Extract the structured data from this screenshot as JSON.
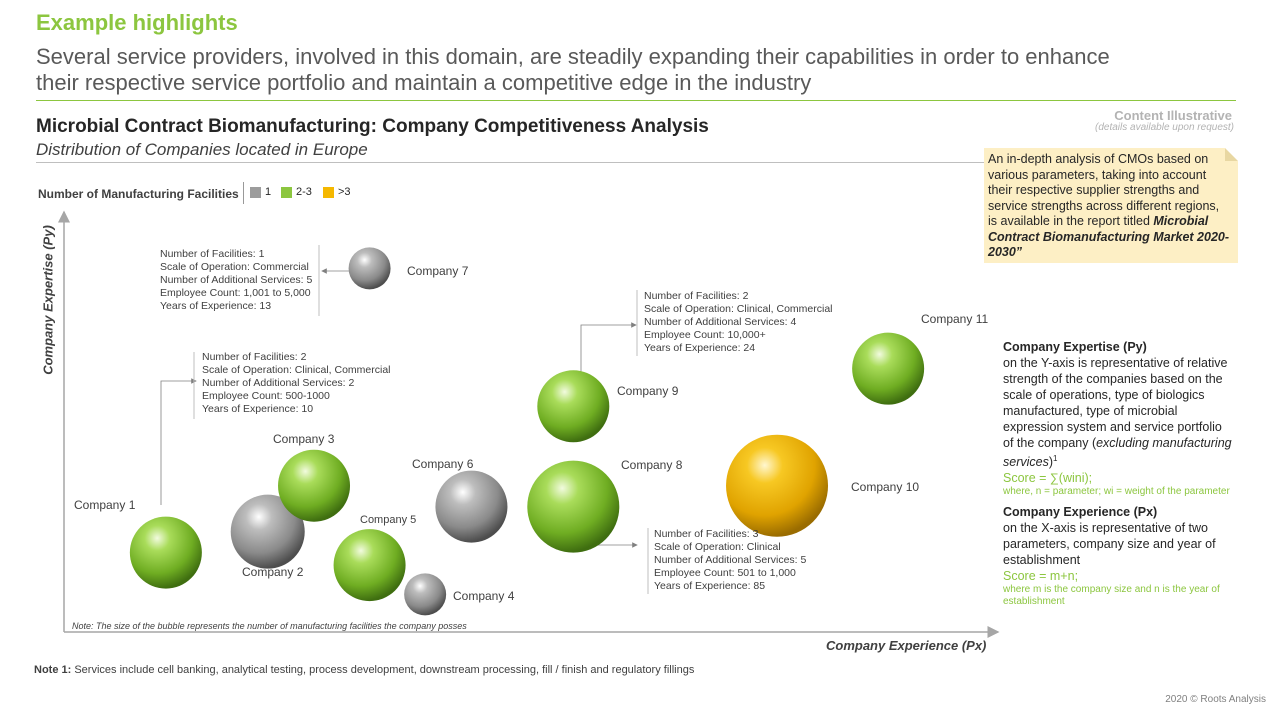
{
  "header": {
    "highlight_title": "Example highlights",
    "subtitle_line1": "Several service providers, involved in this domain, are steadily expanding their capabilities in order to enhance",
    "subtitle_line2": "their respective service portfolio and maintain a competitive edge in the industry",
    "content_illustrative": "Content Illustrative",
    "content_illustrative_sub": "(details available upon request)"
  },
  "callout": {
    "text": "An in-depth analysis of CMOs based on various parameters, taking into account their respective supplier strengths and service strengths across different regions, is available in the report titled",
    "report_title": "Microbial Contract Biomanufacturing Market 2020-2030”"
  },
  "legend": {
    "title": "Number of Manufacturing Facilities",
    "items": [
      {
        "label": "1",
        "color": "#9c9c9c"
      },
      {
        "label": "2-3",
        "color": "#8cc63f"
      },
      {
        "label": ">3",
        "color": "#f5b800"
      }
    ]
  },
  "chart_data": {
    "type": "bubble",
    "title": "Microbial Contract Biomanufacturing: Company Competitiveness Analysis",
    "subtitle": "Distribution of Companies located in Europe",
    "xlabel": "Company Experience (Px)",
    "ylabel": "Company Expertise (Py)",
    "bubble_note": "Note: The size of the bubble represents the number of manufacturing facilities the company posses",
    "xlim": [
      0,
      100
    ],
    "ylim": [
      0,
      100
    ],
    "grid": false,
    "points": [
      {
        "name": "Company 1",
        "x": 11,
        "y": 19,
        "size": 2,
        "facility_group": "2-3"
      },
      {
        "name": "Company 2",
        "x": 22,
        "y": 24,
        "size": 1,
        "facility_group": "1"
      },
      {
        "name": "Company 3",
        "x": 27,
        "y": 35,
        "size": 2,
        "facility_group": "2-3"
      },
      {
        "name": "Company 4",
        "x": 39,
        "y": 9,
        "size": 1,
        "facility_group": "1"
      },
      {
        "name": "Company 5",
        "x": 33,
        "y": 16,
        "size": 2,
        "facility_group": "2-3"
      },
      {
        "name": "Company 6",
        "x": 44,
        "y": 30,
        "size": 1,
        "facility_group": "1"
      },
      {
        "name": "Company 7",
        "x": 33,
        "y": 87,
        "size": 1,
        "facility_group": "1"
      },
      {
        "name": "Company 8",
        "x": 55,
        "y": 30,
        "size": 3,
        "facility_group": "2-3"
      },
      {
        "name": "Company 9",
        "x": 55,
        "y": 54,
        "size": 2,
        "facility_group": "2-3"
      },
      {
        "name": "Company 10",
        "x": 77,
        "y": 35,
        "size": 4,
        "facility_group": ">3"
      },
      {
        "name": "Company 11",
        "x": 89,
        "y": 63,
        "size": 2,
        "facility_group": "2-3"
      }
    ],
    "annotations": [
      {
        "company": "Company 7",
        "lines": [
          "Number of Facilities: 1",
          "Scale of Operation: Commercial",
          "Number of Additional Services: 5",
          "Employee Count: 1,001 to 5,000",
          "Years of Experience: 13"
        ]
      },
      {
        "company": "Company 1",
        "lines": [
          "Number of Facilities: 2",
          "Scale of Operation: Clinical, Commercial",
          "Number of Additional Services: 2",
          "Employee Count: 500-1000",
          "Years of Experience: 10"
        ]
      },
      {
        "company": "Company 9",
        "lines": [
          "Number of Facilities: 2",
          "Scale of Operation: Clinical, Commercial",
          "Number of Additional Services: 4",
          "Employee Count: 10,000+",
          "Years of Experience: 24"
        ]
      },
      {
        "company": "Company 8",
        "lines": [
          "Number of Facilities: 3",
          "Scale of Operation: Clinical",
          "Number of Additional Services: 5",
          "Employee Count: 501 to 1,000",
          "Years of Experience: 85"
        ]
      }
    ]
  },
  "side_panel": {
    "expertise_title": "Company Expertise (Py)",
    "expertise_text": "on the Y-axis is representative of relative strength of the companies based on the scale of operations, type of biologics manufactured, type of microbial expression system and service portfolio of the company (",
    "expertise_italic": "excluding manufacturing services",
    "expertise_close": ")",
    "expertise_sup": "1",
    "expertise_score": "Score = ∑(wini);",
    "expertise_where": "where, n = parameter; wi = weight of the parameter",
    "experience_title": "Company Experience (Px)",
    "experience_text": "on the X-axis is representative of two parameters, company size and year of establishment",
    "experience_score": "Score = m+n;",
    "experience_where": "where m is the company size and n is the year of establishment"
  },
  "footer": {
    "note_label": "Note 1:",
    "note_text": "Services include cell banking, analytical testing, process development, downstream processing, fill / finish and regulatory fillings",
    "copyright": "2020 © Roots Analysis"
  },
  "colors": {
    "accent_green": "#8cc63f",
    "bubble_gray": "#9c9c9c",
    "bubble_gold": "#f5b800",
    "callout_bg": "#fdefc5"
  }
}
